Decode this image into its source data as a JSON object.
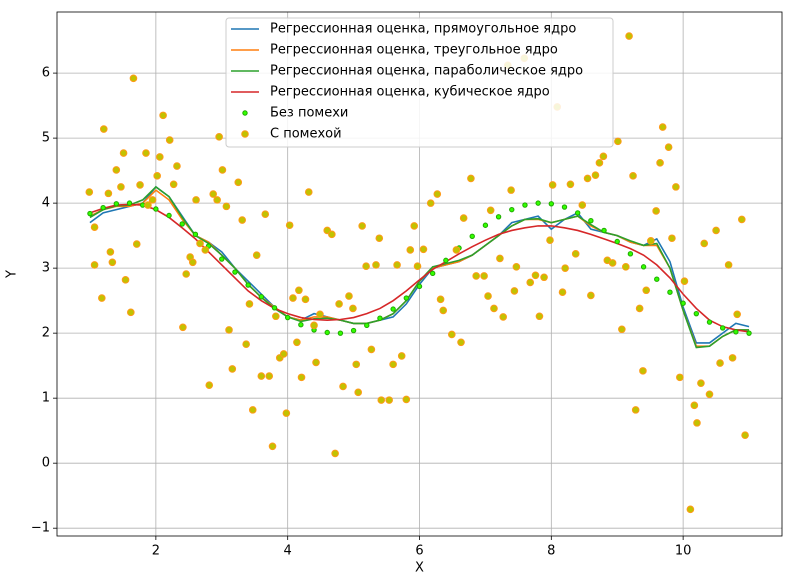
{
  "chart_data": {
    "type": "line",
    "xlabel": "X",
    "ylabel": "Y",
    "xlim": [
      0.5,
      11.5
    ],
    "ylim": [
      -1.12,
      6.94
    ],
    "xticks": [
      2,
      4,
      6,
      8,
      10
    ],
    "yticks": [
      {
        "value": -1,
        "label": "−1"
      },
      0,
      1,
      2,
      3,
      4,
      5,
      6
    ],
    "grid": true,
    "legend": "upper center",
    "x": [
      1,
      1.2,
      1.4,
      1.6,
      1.8,
      2,
      2.2,
      2.4,
      2.6,
      2.8,
      3,
      3.2,
      3.4,
      3.6,
      3.8,
      4,
      4.2,
      4.4,
      4.6,
      4.8,
      5,
      5.2,
      5.4,
      5.6,
      5.8,
      6,
      6.2,
      6.4,
      6.6,
      6.8,
      7,
      7.2,
      7.4,
      7.6,
      7.8,
      8,
      8.2,
      8.4,
      8.6,
      8.8,
      9,
      9.2,
      9.4,
      9.6,
      9.8,
      10,
      10.2,
      10.4,
      10.6,
      10.8,
      11
    ],
    "series": [
      {
        "name": "Регрессионная оценка, прямоугольное ядро",
        "type": "line",
        "color": "#1f77b4",
        "values": [
          3.7,
          3.85,
          3.9,
          3.95,
          4.0,
          4.25,
          4.1,
          3.8,
          3.5,
          3.4,
          3.25,
          3.0,
          2.8,
          2.6,
          2.4,
          2.25,
          2.2,
          2.3,
          2.25,
          2.2,
          2.15,
          2.15,
          2.2,
          2.25,
          2.45,
          2.75,
          3.0,
          3.05,
          3.1,
          3.2,
          3.35,
          3.5,
          3.7,
          3.75,
          3.8,
          3.6,
          3.75,
          3.85,
          3.6,
          3.55,
          3.5,
          3.4,
          3.35,
          3.45,
          3.1,
          2.4,
          1.85,
          1.85,
          2.0,
          2.15,
          2.1
        ]
      },
      {
        "name": "Регрессионная оценка, треугольное ядро",
        "type": "line",
        "color": "#ff7f0e",
        "values": [
          3.8,
          3.9,
          3.95,
          3.95,
          4.0,
          4.2,
          4.05,
          3.75,
          3.5,
          3.4,
          3.2,
          3.0,
          2.75,
          2.55,
          2.4,
          2.25,
          2.2,
          2.25,
          2.25,
          2.2,
          2.15,
          2.15,
          2.2,
          2.3,
          2.5,
          2.8,
          3.0,
          3.05,
          3.1,
          3.2,
          3.35,
          3.5,
          3.65,
          3.75,
          3.75,
          3.7,
          3.75,
          3.8,
          3.65,
          3.55,
          3.5,
          3.4,
          3.35,
          3.35,
          3.0,
          2.35,
          1.8,
          1.8,
          1.95,
          2.05,
          2.05
        ]
      },
      {
        "name": "Регрессионная оценка, параболическое ядро",
        "type": "line",
        "color": "#2ca02c",
        "values": [
          3.78,
          3.9,
          3.96,
          3.97,
          4.05,
          4.25,
          4.1,
          3.78,
          3.5,
          3.38,
          3.2,
          3.0,
          2.75,
          2.55,
          2.38,
          2.25,
          2.18,
          2.22,
          2.23,
          2.2,
          2.15,
          2.15,
          2.2,
          2.3,
          2.5,
          2.8,
          3.02,
          3.07,
          3.12,
          3.2,
          3.35,
          3.5,
          3.65,
          3.75,
          3.76,
          3.7,
          3.75,
          3.8,
          3.67,
          3.55,
          3.5,
          3.42,
          3.35,
          3.38,
          3.0,
          2.35,
          1.78,
          1.8,
          1.95,
          2.05,
          2.05
        ]
      },
      {
        "name": "Регрессионная оценка, кубическое ядро",
        "type": "line",
        "color": "#d62728",
        "values": [
          3.85,
          3.92,
          3.97,
          3.98,
          3.97,
          3.9,
          3.78,
          3.62,
          3.45,
          3.25,
          3.05,
          2.85,
          2.65,
          2.5,
          2.38,
          2.3,
          2.24,
          2.21,
          2.2,
          2.21,
          2.24,
          2.3,
          2.38,
          2.5,
          2.65,
          2.82,
          2.98,
          3.1,
          3.22,
          3.33,
          3.43,
          3.52,
          3.58,
          3.62,
          3.65,
          3.65,
          3.62,
          3.58,
          3.52,
          3.45,
          3.38,
          3.3,
          3.2,
          3.05,
          2.85,
          2.6,
          2.38,
          2.2,
          2.1,
          2.05,
          2.02
        ]
      },
      {
        "name": "Без помехи",
        "type": "scatter",
        "color": "#33ff00",
        "edgecolor": "#1fa800",
        "values": [
          3.84,
          3.93,
          3.99,
          4.0,
          3.97,
          3.91,
          3.81,
          3.68,
          3.52,
          3.34,
          3.14,
          2.94,
          2.74,
          2.56,
          2.39,
          2.24,
          2.13,
          2.05,
          2.01,
          2.0,
          2.04,
          2.12,
          2.23,
          2.37,
          2.54,
          2.72,
          2.92,
          3.12,
          3.31,
          3.49,
          3.66,
          3.79,
          3.9,
          3.97,
          4.0,
          3.99,
          3.94,
          3.85,
          3.73,
          3.58,
          3.41,
          3.22,
          3.02,
          2.83,
          2.63,
          2.46,
          2.3,
          2.17,
          2.08,
          2.02,
          2.0
        ]
      },
      {
        "name": "С помехой",
        "type": "scatter",
        "color": "#c2c200",
        "edgecolor": "#ff9a1a",
        "x": [
          0.99,
          1.07,
          1.07,
          1.18,
          1.21,
          1.28,
          1.31,
          1.34,
          1.4,
          1.47,
          1.51,
          1.54,
          1.62,
          1.66,
          1.71,
          1.76,
          1.85,
          1.88,
          1.95,
          2.02,
          2.06,
          2.11,
          2.21,
          2.27,
          2.32,
          2.41,
          2.46,
          2.52,
          2.56,
          2.61,
          2.67,
          2.75,
          2.81,
          2.87,
          2.93,
          2.96,
          3.01,
          3.07,
          3.11,
          3.16,
          3.25,
          3.31,
          3.37,
          3.42,
          3.47,
          3.53,
          3.6,
          3.66,
          3.72,
          3.77,
          3.82,
          3.88,
          3.94,
          3.98,
          4.03,
          4.08,
          4.14,
          4.17,
          4.21,
          4.27,
          4.32,
          4.4,
          4.43,
          4.49,
          4.6,
          4.67,
          4.72,
          4.78,
          4.84,
          4.93,
          4.99,
          5.04,
          5.07,
          5.13,
          5.19,
          5.27,
          5.34,
          5.39,
          5.42,
          5.54,
          5.6,
          5.66,
          5.73,
          5.8,
          5.86,
          5.92,
          5.97,
          6.06,
          6.17,
          6.27,
          6.32,
          6.36,
          6.49,
          6.56,
          6.63,
          6.67,
          6.78,
          6.86,
          6.98,
          7.04,
          7.08,
          7.13,
          7.22,
          7.27,
          7.34,
          7.39,
          7.44,
          7.47,
          7.59,
          7.68,
          7.76,
          7.82,
          7.89,
          7.98,
          8.02,
          8.09,
          8.17,
          8.21,
          8.29,
          8.37,
          8.47,
          8.55,
          8.6,
          8.67,
          8.73,
          8.79,
          8.85,
          8.93,
          9.01,
          9.07,
          9.13,
          9.18,
          9.24,
          9.28,
          9.34,
          9.39,
          9.44,
          9.51,
          9.59,
          9.65,
          9.69,
          9.78,
          9.83,
          9.89,
          9.95,
          10.02,
          10.11,
          10.17,
          10.21,
          10.27,
          10.32,
          10.4,
          10.5,
          10.56,
          10.69,
          10.75,
          10.82,
          10.89,
          10.94
        ],
        "values": [
          4.17,
          3.63,
          3.05,
          2.54,
          5.14,
          4.15,
          3.25,
          3.09,
          4.51,
          4.25,
          4.77,
          2.82,
          2.32,
          5.92,
          3.37,
          4.28,
          4.77,
          3.97,
          4.05,
          4.42,
          4.71,
          5.35,
          4.97,
          4.29,
          4.57,
          2.09,
          2.91,
          3.17,
          3.09,
          4.05,
          3.38,
          3.28,
          1.2,
          4.14,
          4.05,
          5.02,
          4.51,
          3.95,
          2.05,
          1.45,
          4.32,
          3.74,
          1.83,
          2.45,
          0.82,
          3.2,
          1.34,
          3.83,
          1.34,
          0.26,
          2.26,
          1.62,
          1.68,
          0.77,
          3.66,
          2.54,
          1.86,
          2.66,
          1.32,
          2.52,
          4.17,
          2.12,
          1.55,
          2.29,
          3.58,
          3.52,
          0.15,
          2.45,
          1.18,
          2.57,
          2.38,
          1.52,
          1.09,
          3.65,
          3.03,
          1.75,
          3.05,
          3.46,
          0.97,
          0.97,
          1.52,
          3.05,
          1.65,
          0.98,
          3.28,
          3.65,
          3.03,
          3.29,
          4.0,
          4.14,
          2.52,
          2.35,
          1.98,
          3.28,
          1.86,
          3.77,
          4.38,
          2.88,
          2.88,
          2.57,
          3.89,
          2.38,
          3.15,
          2.25,
          6.12,
          4.2,
          2.65,
          3.02,
          6.23,
          2.78,
          2.89,
          2.26,
          2.86,
          3.43,
          4.28,
          5.48,
          2.63,
          3.0,
          4.29,
          3.22,
          3.97,
          4.38,
          2.58,
          4.43,
          4.62,
          4.72,
          3.12,
          3.08,
          4.95,
          2.06,
          3.02,
          6.57,
          4.42,
          0.82,
          2.38,
          1.42,
          2.66,
          3.42,
          3.88,
          4.62,
          5.17,
          4.86,
          3.46,
          4.25,
          1.32,
          2.8,
          -0.71,
          0.89,
          0.62,
          1.23,
          3.38,
          1.06,
          3.58,
          1.54,
          3.05,
          1.62,
          2.29,
          3.75,
          0.43
        ]
      }
    ]
  }
}
